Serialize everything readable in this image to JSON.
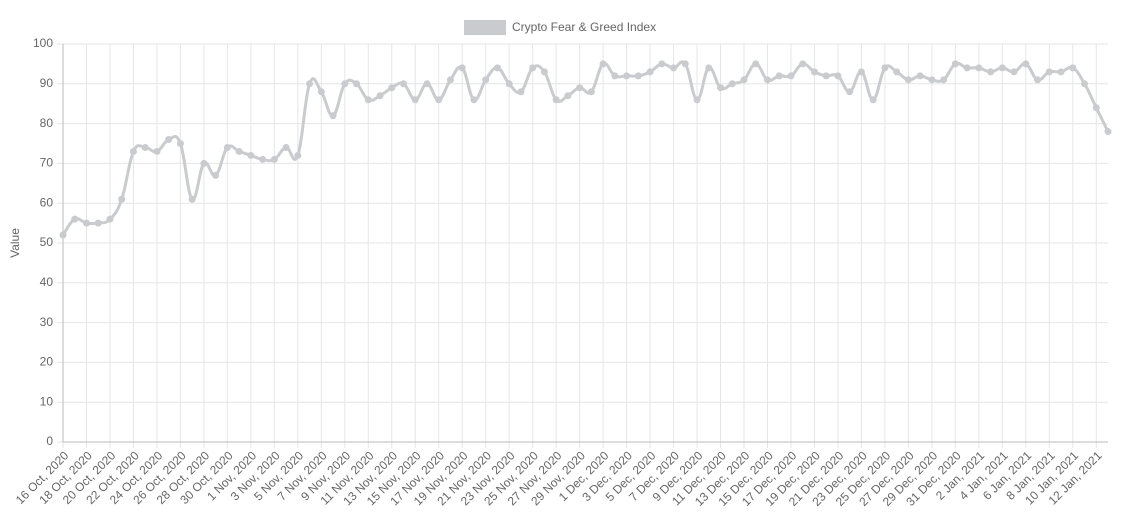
{
  "chart_data": {
    "type": "line",
    "legend": "Crypto Fear & Greed Index",
    "y_label": "Value",
    "color": "#c9cbcf",
    "grid": true,
    "legend_position": "top",
    "ylim": [
      0,
      100
    ],
    "yticks": [
      0,
      10,
      20,
      30,
      40,
      50,
      60,
      70,
      80,
      90,
      100
    ],
    "categories": [
      "16 Oct, 2020",
      null,
      "18 Oct, 2020",
      null,
      "20 Oct, 2020",
      null,
      "22 Oct, 2020",
      null,
      "24 Oct, 2020",
      null,
      "26 Oct, 2020",
      null,
      "28 Oct, 2020",
      null,
      "30 Oct, 2020",
      null,
      "1 Nov, 2020",
      null,
      "3 Nov, 2020",
      null,
      "5 Nov, 2020",
      null,
      "7 Nov, 2020",
      null,
      "9 Nov, 2020",
      null,
      "11 Nov, 2020",
      null,
      "13 Nov, 2020",
      null,
      "15 Nov, 2020",
      null,
      "17 Nov, 2020",
      null,
      "19 Nov, 2020",
      null,
      "21 Nov, 2020",
      null,
      "23 Nov, 2020",
      null,
      "25 Nov, 2020",
      null,
      "27 Nov, 2020",
      null,
      "29 Nov, 2020",
      null,
      "1 Dec, 2020",
      null,
      "3 Dec, 2020",
      null,
      "5 Dec, 2020",
      null,
      "7 Dec, 2020",
      null,
      "9 Dec, 2020",
      null,
      "11 Dec, 2020",
      null,
      "13 Dec, 2020",
      null,
      "15 Dec, 2020",
      null,
      "17 Dec, 2020",
      null,
      "19 Dec, 2020",
      null,
      "21 Dec, 2020",
      null,
      "23 Dec, 2020",
      null,
      "25 Dec, 2020",
      null,
      "27 Dec, 2020",
      null,
      "29 Dec, 2020",
      null,
      "31 Dec, 2020",
      null,
      "2 Jan, 2021",
      null,
      "4 Jan, 2021",
      null,
      "6 Jan, 2021",
      null,
      "8 Jan, 2021",
      null,
      "10 Jan, 2021",
      null,
      "12 Jan, 2021",
      null
    ],
    "values": [
      52,
      56,
      55,
      55,
      56,
      61,
      73,
      74,
      73,
      76,
      75,
      61,
      70,
      67,
      74,
      73,
      72,
      71,
      71,
      74,
      72,
      90,
      88,
      82,
      90,
      90,
      86,
      87,
      89,
      90,
      86,
      90,
      86,
      91,
      94,
      86,
      91,
      94,
      90,
      88,
      94,
      93,
      86,
      87,
      89,
      88,
      95,
      92,
      92,
      92,
      93,
      95,
      94,
      95,
      86,
      94,
      89,
      90,
      91,
      95,
      91,
      92,
      92,
      95,
      93,
      92,
      92,
      88,
      93,
      86,
      94,
      93,
      91,
      92,
      91,
      91,
      95,
      94,
      94,
      93,
      94,
      93,
      95,
      91,
      93,
      93,
      94,
      90,
      84,
      78
    ]
  }
}
